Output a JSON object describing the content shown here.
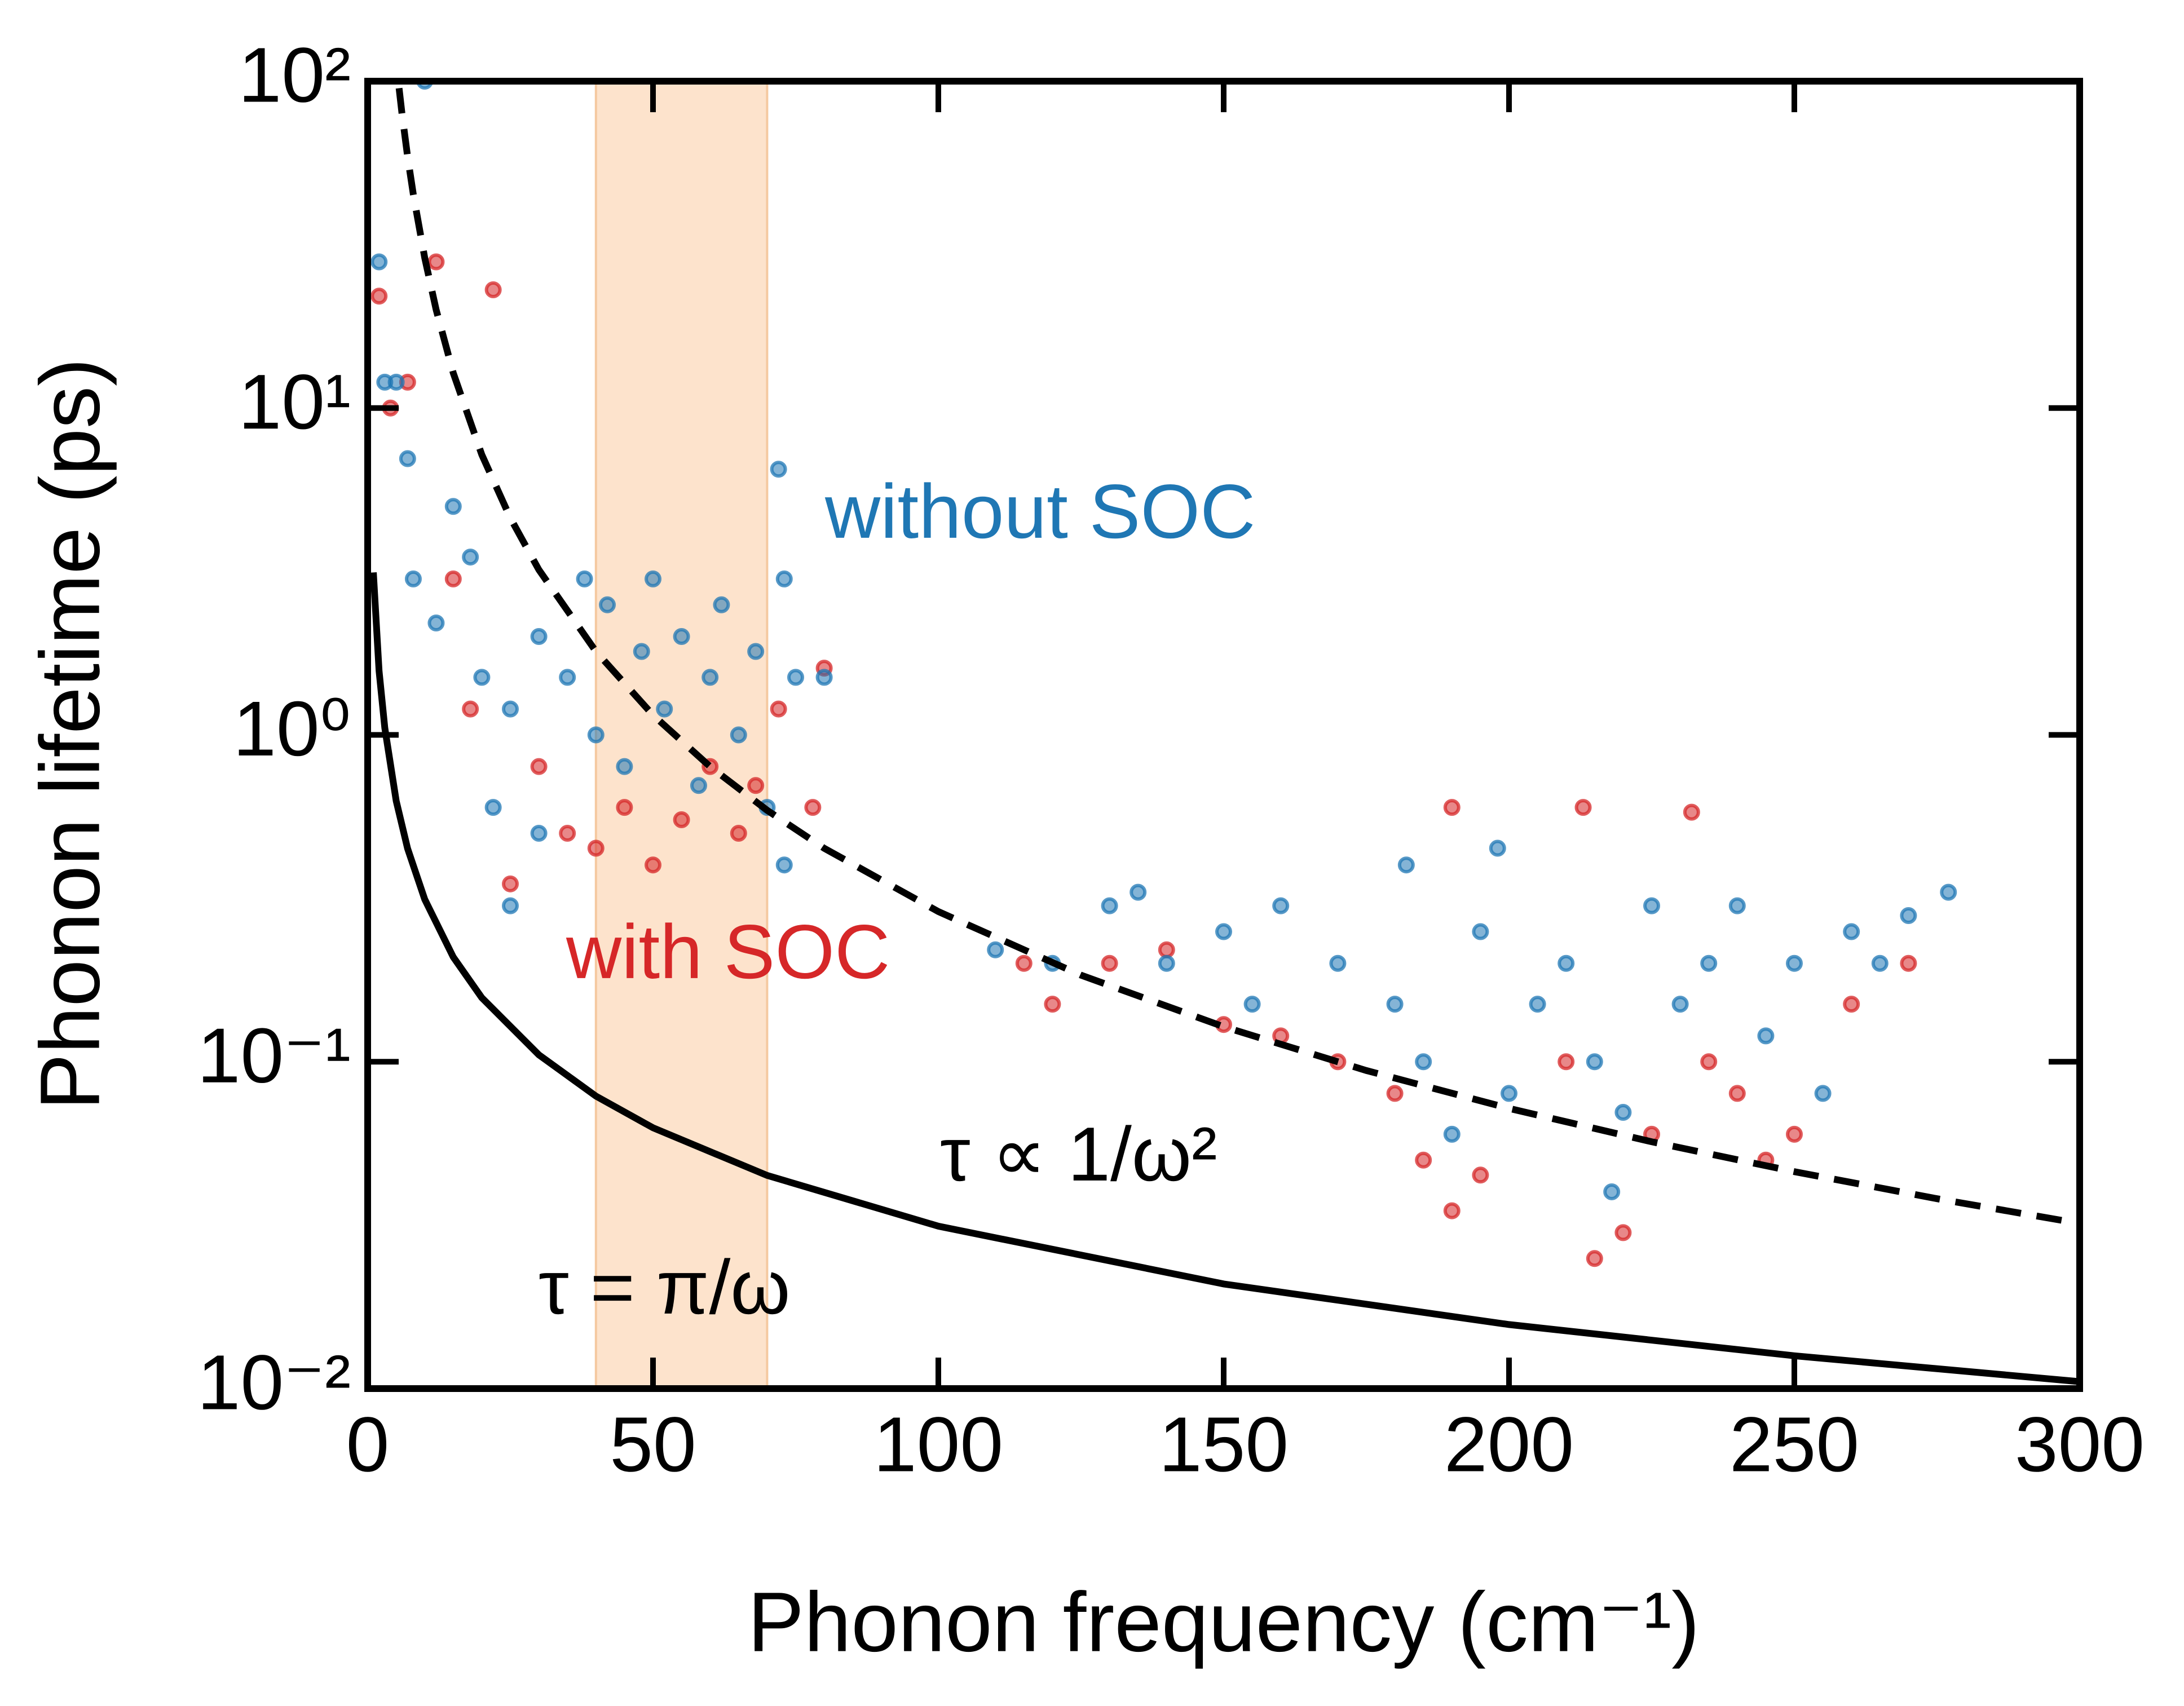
{
  "chart_data": {
    "type": "scatter",
    "xlabel": "Phonon frequency (cm⁻¹)",
    "ylabel": "Phonon lifetime (ps)",
    "xlim": [
      0,
      300
    ],
    "ylim": [
      0.01,
      100
    ],
    "yscale": "log",
    "xticks": [
      0,
      50,
      100,
      150,
      200,
      250,
      300
    ],
    "yticks": [
      {
        "value": 0.01,
        "label": "10⁻²"
      },
      {
        "value": 0.1,
        "label": "10⁻¹"
      },
      {
        "value": 1,
        "label": "10⁰"
      },
      {
        "value": 10,
        "label": "10¹"
      },
      {
        "value": 100,
        "label": "10²"
      }
    ],
    "highlight": {
      "x": [
        40,
        70
      ],
      "color": "#fde3cc"
    },
    "series": [
      {
        "name": "with SOC",
        "color": "#d62728",
        "x": [
          2,
          4,
          7,
          12,
          15,
          18,
          22,
          25,
          30,
          35,
          40,
          45,
          50,
          55,
          60,
          65,
          68,
          72,
          78,
          80,
          115,
          120,
          130,
          140,
          150,
          160,
          170,
          180,
          185,
          190,
          195,
          190,
          210,
          213,
          215,
          220,
          225,
          232,
          235,
          240,
          245,
          250,
          260,
          270
        ],
        "values": [
          22,
          10,
          12,
          28,
          3,
          1.2,
          23,
          0.35,
          0.8,
          0.5,
          0.45,
          0.6,
          0.4,
          0.55,
          0.8,
          0.5,
          0.7,
          1.2,
          0.6,
          1.6,
          0.2,
          0.15,
          0.2,
          0.22,
          0.13,
          0.12,
          0.1,
          0.08,
          0.05,
          0.035,
          0.045,
          0.6,
          0.1,
          0.6,
          0.025,
          0.03,
          0.06,
          0.58,
          0.1,
          0.08,
          0.05,
          0.06,
          0.15,
          0.2
        ]
      },
      {
        "name": "without SOC",
        "color": "#1f77b4",
        "x": [
          2,
          3,
          5,
          7,
          10,
          8,
          12,
          15,
          18,
          20,
          22,
          25,
          25,
          30,
          30,
          35,
          38,
          40,
          42,
          45,
          48,
          50,
          52,
          55,
          58,
          60,
          62,
          65,
          68,
          70,
          72,
          73,
          75,
          80,
          73,
          110,
          120,
          130,
          135,
          140,
          150,
          155,
          160,
          170,
          180,
          182,
          185,
          190,
          195,
          200,
          198,
          205,
          210,
          215,
          218,
          220,
          225,
          230,
          235,
          240,
          245,
          250,
          255,
          260,
          265,
          270,
          277
        ],
        "values": [
          28,
          12,
          12,
          7,
          100,
          3,
          2.2,
          5,
          3.5,
          1.5,
          0.6,
          0.3,
          1.2,
          2,
          0.5,
          1.5,
          3,
          1,
          2.5,
          0.8,
          1.8,
          3,
          1.2,
          2,
          0.7,
          1.5,
          2.5,
          1,
          1.8,
          0.6,
          6.5,
          3,
          1.5,
          1.5,
          0.4,
          0.22,
          0.2,
          0.3,
          0.33,
          0.2,
          0.25,
          0.15,
          0.3,
          0.2,
          0.15,
          0.4,
          0.1,
          0.06,
          0.25,
          0.08,
          0.45,
          0.15,
          0.2,
          0.1,
          0.04,
          0.07,
          0.3,
          0.15,
          0.2,
          0.3,
          0.12,
          0.2,
          0.08,
          0.25,
          0.2,
          0.28,
          0.33
        ]
      },
      {
        "name": "τ = π/ω",
        "type": "line",
        "linestyle": "solid",
        "color": "#000000",
        "x": [
          1,
          2,
          3,
          5,
          7,
          10,
          15,
          20,
          30,
          40,
          50,
          70,
          100,
          150,
          200,
          250,
          300
        ],
        "values": [
          3.14,
          1.57,
          1.05,
          0.628,
          0.449,
          0.314,
          0.209,
          0.157,
          0.105,
          0.0785,
          0.0628,
          0.0449,
          0.0314,
          0.0209,
          0.0157,
          0.0126,
          0.0105
        ]
      },
      {
        "name": "τ ∝ 1/ω²",
        "type": "line",
        "linestyle": "dashed",
        "color": "#000000",
        "x": [
          5.5,
          6,
          7,
          8,
          10,
          12,
          15,
          20,
          25,
          30,
          40,
          50,
          60,
          70,
          80,
          100,
          125,
          150,
          175,
          200,
          225,
          250,
          275,
          300
        ],
        "values": [
          95.2,
          80,
          58.8,
          45,
          28.8,
          20,
          12.8,
          7.2,
          4.61,
          3.2,
          1.8,
          1.15,
          0.8,
          0.588,
          0.45,
          0.288,
          0.184,
          0.128,
          0.094,
          0.072,
          0.0569,
          0.0461,
          0.0381,
          0.032
        ]
      }
    ]
  }
}
